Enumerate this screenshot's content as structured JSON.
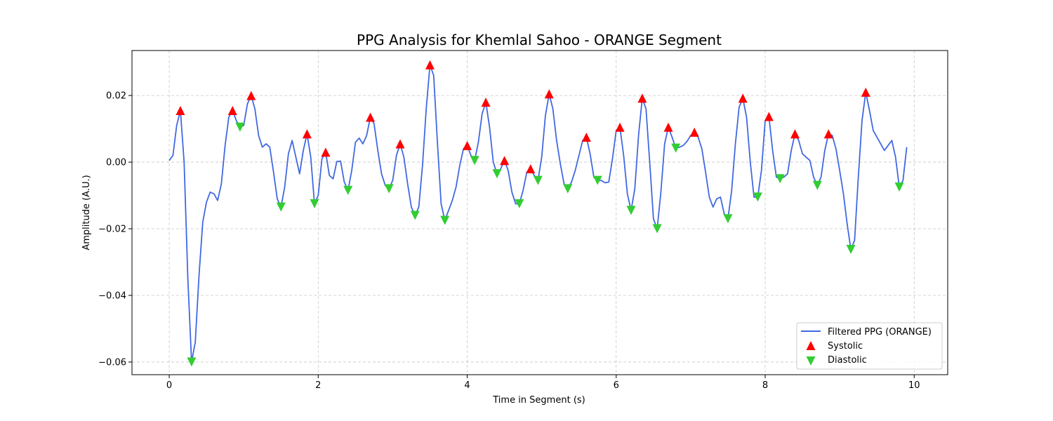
{
  "chart_data": {
    "type": "line",
    "title": "PPG Analysis for Khemlal Sahoo - ORANGE Segment",
    "xlabel": "Time in Segment (s)",
    "ylabel": "Amplitude (A.U.)",
    "xlim": [
      -0.5,
      10.45
    ],
    "ylim": [
      -0.0638,
      0.0335
    ],
    "x_ticks": [
      0,
      2,
      4,
      6,
      8,
      10
    ],
    "x_tick_labels": [
      "0",
      "2",
      "4",
      "6",
      "8",
      "10"
    ],
    "y_ticks": [
      -0.06,
      -0.04,
      -0.02,
      0.0,
      0.02
    ],
    "y_tick_labels": [
      "−0.06",
      "−0.04",
      "−0.02",
      "0.00",
      "0.02"
    ],
    "grid": true,
    "legend_position": "lower-right",
    "series": [
      {
        "name": "Filtered PPG (ORANGE)",
        "kind": "line",
        "color": "#4169e1",
        "points": [
          [
            0.0,
            0.0005
          ],
          [
            0.05,
            0.002
          ],
          [
            0.1,
            0.011
          ],
          [
            0.15,
            0.0155
          ],
          [
            0.2,
            0.0
          ],
          [
            0.25,
            -0.035
          ],
          [
            0.3,
            -0.06
          ],
          [
            0.35,
            -0.054
          ],
          [
            0.4,
            -0.034
          ],
          [
            0.45,
            -0.018
          ],
          [
            0.5,
            -0.012
          ],
          [
            0.55,
            -0.009
          ],
          [
            0.6,
            -0.0095
          ],
          [
            0.65,
            -0.0115
          ],
          [
            0.7,
            -0.0065
          ],
          [
            0.75,
            0.005
          ],
          [
            0.8,
            0.0135
          ],
          [
            0.85,
            0.0155
          ],
          [
            0.9,
            0.0125
          ],
          [
            0.95,
            0.0105
          ],
          [
            1.0,
            0.011
          ],
          [
            1.05,
            0.0175
          ],
          [
            1.1,
            0.02
          ],
          [
            1.15,
            0.016
          ],
          [
            1.2,
            0.008
          ],
          [
            1.25,
            0.0045
          ],
          [
            1.3,
            0.0055
          ],
          [
            1.35,
            0.0045
          ],
          [
            1.4,
            -0.003
          ],
          [
            1.45,
            -0.011
          ],
          [
            1.5,
            -0.0135
          ],
          [
            1.55,
            -0.0075
          ],
          [
            1.6,
            0.0025
          ],
          [
            1.65,
            0.0065
          ],
          [
            1.7,
            0.0015
          ],
          [
            1.75,
            -0.0035
          ],
          [
            1.8,
            0.0035
          ],
          [
            1.85,
            0.0085
          ],
          [
            1.9,
            0.0015
          ],
          [
            1.95,
            -0.0125
          ],
          [
            2.0,
            -0.01
          ],
          [
            2.05,
            0.001
          ],
          [
            2.1,
            0.003
          ],
          [
            2.15,
            -0.004
          ],
          [
            2.2,
            -0.005
          ],
          [
            2.25,
            0.0002
          ],
          [
            2.3,
            0.0003
          ],
          [
            2.35,
            -0.006
          ],
          [
            2.4,
            -0.0085
          ],
          [
            2.45,
            -0.0025
          ],
          [
            2.5,
            0.006
          ],
          [
            2.55,
            0.0072
          ],
          [
            2.6,
            0.0055
          ],
          [
            2.65,
            0.008
          ],
          [
            2.7,
            0.0135
          ],
          [
            2.75,
            0.0115
          ],
          [
            2.8,
            0.0035
          ],
          [
            2.85,
            -0.0035
          ],
          [
            2.9,
            -0.007
          ],
          [
            2.95,
            -0.008
          ],
          [
            3.0,
            -0.0055
          ],
          [
            3.05,
            0.002
          ],
          [
            3.1,
            0.0055
          ],
          [
            3.15,
            0.0015
          ],
          [
            3.2,
            -0.0065
          ],
          [
            3.25,
            -0.0135
          ],
          [
            3.3,
            -0.016
          ],
          [
            3.35,
            -0.0135
          ],
          [
            3.4,
            -0.001
          ],
          [
            3.45,
            0.016
          ],
          [
            3.5,
            0.0292
          ],
          [
            3.55,
            0.026
          ],
          [
            3.6,
            0.006
          ],
          [
            3.65,
            -0.0125
          ],
          [
            3.7,
            -0.0175
          ],
          [
            3.75,
            -0.0145
          ],
          [
            3.8,
            -0.0115
          ],
          [
            3.85,
            -0.0075
          ],
          [
            3.9,
            -0.001
          ],
          [
            3.95,
            0.004
          ],
          [
            4.0,
            0.005
          ],
          [
            4.05,
            0.002
          ],
          [
            4.1,
            0.0005
          ],
          [
            4.15,
            0.006
          ],
          [
            4.2,
            0.0145
          ],
          [
            4.25,
            0.018
          ],
          [
            4.3,
            0.0105
          ],
          [
            4.35,
            0.0
          ],
          [
            4.4,
            -0.0035
          ],
          [
            4.45,
            -0.002
          ],
          [
            4.5,
            0.0005
          ],
          [
            4.55,
            -0.0025
          ],
          [
            4.6,
            -0.009
          ],
          [
            4.65,
            -0.0125
          ],
          [
            4.7,
            -0.0125
          ],
          [
            4.75,
            -0.0085
          ],
          [
            4.8,
            -0.003
          ],
          [
            4.85,
            -0.002
          ],
          [
            4.9,
            -0.004
          ],
          [
            4.95,
            -0.0055
          ],
          [
            5.0,
            0.0015
          ],
          [
            5.05,
            0.014
          ],
          [
            5.1,
            0.0205
          ],
          [
            5.15,
            0.016
          ],
          [
            5.2,
            0.0065
          ],
          [
            5.25,
            -0.0005
          ],
          [
            5.3,
            -0.0065
          ],
          [
            5.35,
            -0.008
          ],
          [
            5.4,
            -0.006
          ],
          [
            5.45,
            -0.0025
          ],
          [
            5.5,
            0.002
          ],
          [
            5.55,
            0.0065
          ],
          [
            5.6,
            0.0075
          ],
          [
            5.65,
            0.0025
          ],
          [
            5.7,
            -0.0045
          ],
          [
            5.75,
            -0.0055
          ],
          [
            5.8,
            -0.0055
          ],
          [
            5.85,
            -0.0062
          ],
          [
            5.9,
            -0.006
          ],
          [
            5.95,
            0.001
          ],
          [
            6.0,
            0.0095
          ],
          [
            6.05,
            0.0105
          ],
          [
            6.1,
            0.002
          ],
          [
            6.15,
            -0.0095
          ],
          [
            6.2,
            -0.0145
          ],
          [
            6.25,
            -0.008
          ],
          [
            6.3,
            0.008
          ],
          [
            6.35,
            0.0192
          ],
          [
            6.4,
            0.016
          ],
          [
            6.45,
            0.0
          ],
          [
            6.5,
            -0.017
          ],
          [
            6.55,
            -0.02
          ],
          [
            6.6,
            -0.009
          ],
          [
            6.65,
            0.0055
          ],
          [
            6.7,
            0.0105
          ],
          [
            6.75,
            0.0075
          ],
          [
            6.8,
            0.0042
          ],
          [
            6.85,
            0.0045
          ],
          [
            6.9,
            0.005
          ],
          [
            6.95,
            0.0062
          ],
          [
            7.0,
            0.008
          ],
          [
            7.05,
            0.009
          ],
          [
            7.1,
            0.0075
          ],
          [
            7.15,
            0.004
          ],
          [
            7.2,
            -0.003
          ],
          [
            7.25,
            -0.0105
          ],
          [
            7.3,
            -0.0135
          ],
          [
            7.35,
            -0.011
          ],
          [
            7.4,
            -0.0105
          ],
          [
            7.45,
            -0.0155
          ],
          [
            7.5,
            -0.017
          ],
          [
            7.55,
            -0.0085
          ],
          [
            7.6,
            0.0055
          ],
          [
            7.65,
            0.0165
          ],
          [
            7.7,
            0.0192
          ],
          [
            7.75,
            0.0135
          ],
          [
            7.8,
            0.0
          ],
          [
            7.85,
            -0.0105
          ],
          [
            7.9,
            -0.0105
          ],
          [
            7.95,
            -0.0025
          ],
          [
            8.0,
            0.0125
          ],
          [
            8.05,
            0.0137
          ],
          [
            8.1,
            0.0035
          ],
          [
            8.15,
            -0.0045
          ],
          [
            8.2,
            -0.005
          ],
          [
            8.25,
            -0.0045
          ],
          [
            8.3,
            -0.0035
          ],
          [
            8.35,
            0.0035
          ],
          [
            8.4,
            0.0085
          ],
          [
            8.45,
            0.0065
          ],
          [
            8.5,
            0.0025
          ],
          [
            8.55,
            0.0015
          ],
          [
            8.6,
            0.0005
          ],
          [
            8.65,
            -0.0045
          ],
          [
            8.7,
            -0.007
          ],
          [
            8.75,
            -0.0045
          ],
          [
            8.8,
            0.0035
          ],
          [
            8.85,
            0.0085
          ],
          [
            8.9,
            0.008
          ],
          [
            8.95,
            0.004
          ],
          [
            9.0,
            -0.0025
          ],
          [
            9.05,
            -0.0095
          ],
          [
            9.1,
            -0.0185
          ],
          [
            9.15,
            -0.0262
          ],
          [
            9.2,
            -0.0235
          ],
          [
            9.25,
            -0.0045
          ],
          [
            9.3,
            0.0125
          ],
          [
            9.35,
            0.021
          ],
          [
            9.4,
            0.0155
          ],
          [
            9.45,
            0.0095
          ],
          [
            9.5,
            0.0075
          ],
          [
            9.55,
            0.0055
          ],
          [
            9.6,
            0.0035
          ],
          [
            9.65,
            0.005
          ],
          [
            9.7,
            0.0065
          ],
          [
            9.75,
            0.0015
          ],
          [
            9.8,
            -0.0075
          ],
          [
            9.85,
            -0.0055
          ],
          [
            9.9,
            0.0045
          ]
        ]
      },
      {
        "name": "Systolic",
        "kind": "marker-up",
        "color": "#ff0000",
        "points": [
          [
            0.15,
            0.0155
          ],
          [
            0.85,
            0.0155
          ],
          [
            1.1,
            0.02
          ],
          [
            1.85,
            0.0085
          ],
          [
            2.1,
            0.003
          ],
          [
            2.7,
            0.0135
          ],
          [
            3.1,
            0.0055
          ],
          [
            3.5,
            0.0292
          ],
          [
            4.0,
            0.005
          ],
          [
            4.25,
            0.018
          ],
          [
            4.5,
            0.0005
          ],
          [
            4.85,
            -0.002
          ],
          [
            5.1,
            0.0205
          ],
          [
            5.6,
            0.0075
          ],
          [
            6.05,
            0.0105
          ],
          [
            6.35,
            0.0192
          ],
          [
            6.7,
            0.0105
          ],
          [
            7.05,
            0.009
          ],
          [
            7.7,
            0.0192
          ],
          [
            8.05,
            0.0137
          ],
          [
            8.4,
            0.0085
          ],
          [
            8.85,
            0.0085
          ],
          [
            9.35,
            0.021
          ]
        ]
      },
      {
        "name": "Diastolic",
        "kind": "marker-down",
        "color": "#32cd32",
        "points": [
          [
            0.3,
            -0.06
          ],
          [
            0.95,
            0.0105
          ],
          [
            1.5,
            -0.0135
          ],
          [
            1.95,
            -0.0125
          ],
          [
            2.4,
            -0.0085
          ],
          [
            2.95,
            -0.008
          ],
          [
            3.3,
            -0.016
          ],
          [
            3.7,
            -0.0175
          ],
          [
            4.1,
            0.0005
          ],
          [
            4.4,
            -0.0035
          ],
          [
            4.7,
            -0.0125
          ],
          [
            4.95,
            -0.0055
          ],
          [
            5.35,
            -0.008
          ],
          [
            5.75,
            -0.0055
          ],
          [
            6.2,
            -0.0145
          ],
          [
            6.55,
            -0.02
          ],
          [
            6.8,
            0.0042
          ],
          [
            7.5,
            -0.017
          ],
          [
            7.9,
            -0.0105
          ],
          [
            8.2,
            -0.005
          ],
          [
            8.7,
            -0.007
          ],
          [
            9.15,
            -0.0262
          ],
          [
            9.8,
            -0.0075
          ]
        ]
      }
    ]
  }
}
